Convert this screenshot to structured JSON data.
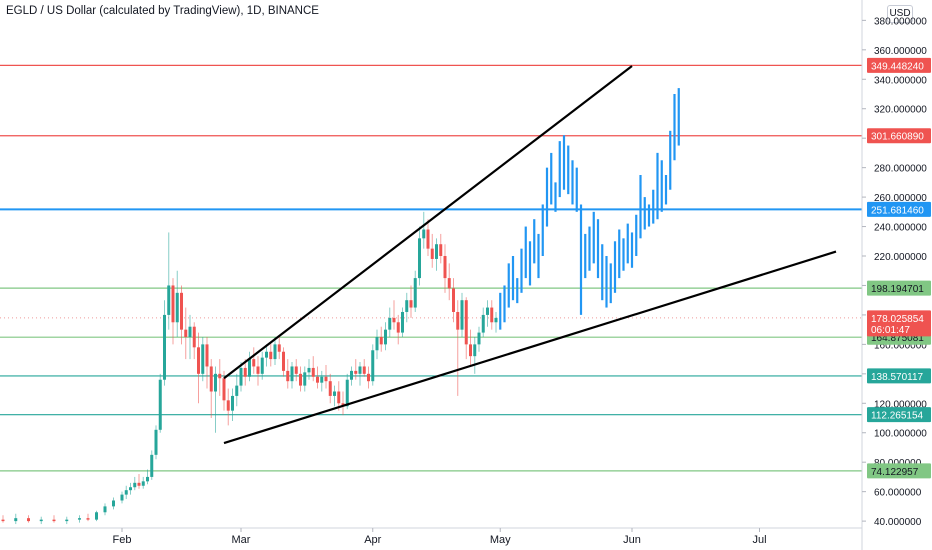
{
  "header": {
    "title": "EGLD / US Dollar (calculated by TradingView), 1D, BINANCE",
    "currency_button": "USD"
  },
  "colors": {
    "up": "#26a69a",
    "down": "#ef5350",
    "projection": "#2196f3",
    "trendline": "#000000"
  },
  "chart_data": {
    "type": "candlestick",
    "title": "EGLD / US Dollar (calculated by TradingView), 1D, BINANCE",
    "ylim": [
      36,
      385
    ],
    "y_ticks": [
      40,
      60,
      80,
      100,
      120,
      140,
      160,
      180,
      200,
      220,
      240,
      260,
      280,
      300,
      320,
      340,
      360,
      380
    ],
    "y_tick_labels": [
      "40.000000",
      "60.000000",
      "80.000000",
      "100.000000",
      "120.000000",
      "140.000000",
      "160.000000",
      "180.000000",
      "200.000000",
      "220.000000",
      "240.000000",
      "260.000000",
      "280.000000",
      "300.000000",
      "320.000000",
      "340.000000",
      "360.000000",
      "380.000000"
    ],
    "x_ticks": [
      {
        "date": "2021-02-01",
        "label": "Feb"
      },
      {
        "date": "2021-03-01",
        "label": "Mar"
      },
      {
        "date": "2021-04-01",
        "label": "Apr"
      },
      {
        "date": "2021-05-01",
        "label": "May"
      },
      {
        "date": "2021-06-01",
        "label": "Jun"
      },
      {
        "date": "2021-07-01",
        "label": "Jul"
      }
    ],
    "price_levels": [
      {
        "price": 349.44824,
        "label": "349.448240",
        "color": "#ef5350",
        "kind": "resistance"
      },
      {
        "price": 301.66089,
        "label": "301.660890",
        "color": "#ef5350",
        "kind": "resistance"
      },
      {
        "price": 251.68146,
        "label": "251.681460",
        "color": "#2196f3",
        "kind": "level"
      },
      {
        "price": 198.194701,
        "label": "198.194701",
        "color": "#81c784",
        "kind": "support"
      },
      {
        "price": 164.875081,
        "label": "164.875081",
        "color": "#81c784",
        "kind": "support"
      },
      {
        "price": 138.570117,
        "label": "138.570117",
        "color": "#26a69a",
        "kind": "support"
      },
      {
        "price": 112.265154,
        "label": "112.265154",
        "color": "#26a69a",
        "kind": "support"
      },
      {
        "price": 74.122957,
        "label": "74.122957",
        "color": "#81c784",
        "kind": "support"
      }
    ],
    "current_price": {
      "price": 178.025854,
      "label": "178.025854",
      "countdown": "06:01:47"
    },
    "trendlines": [
      {
        "from": {
          "date": "2021-02-25",
          "price": 93
        },
        "to": {
          "date": "2021-07-19",
          "price": 223
        }
      },
      {
        "from": {
          "date": "2021-02-25",
          "price": 137
        },
        "to": {
          "date": "2021-06-01",
          "price": 349
        }
      }
    ],
    "candles": [
      {
        "date": "2021-01-01",
        "o": 40,
        "h": 42,
        "l": 38,
        "c": 41
      },
      {
        "date": "2021-01-04",
        "o": 41,
        "h": 44,
        "l": 39,
        "c": 40
      },
      {
        "date": "2021-01-07",
        "o": 40,
        "h": 45,
        "l": 38,
        "c": 42
      },
      {
        "date": "2021-01-10",
        "o": 42,
        "h": 44,
        "l": 39,
        "c": 40
      },
      {
        "date": "2021-01-13",
        "o": 40,
        "h": 43,
        "l": 38,
        "c": 41
      },
      {
        "date": "2021-01-16",
        "o": 41,
        "h": 44,
        "l": 39,
        "c": 40
      },
      {
        "date": "2021-01-19",
        "o": 40,
        "h": 43,
        "l": 38,
        "c": 41
      },
      {
        "date": "2021-01-22",
        "o": 41,
        "h": 44,
        "l": 39,
        "c": 42
      },
      {
        "date": "2021-01-24",
        "o": 42,
        "h": 45,
        "l": 40,
        "c": 41
      },
      {
        "date": "2021-01-26",
        "o": 41,
        "h": 47,
        "l": 40,
        "c": 46
      },
      {
        "date": "2021-01-28",
        "o": 46,
        "h": 52,
        "l": 44,
        "c": 50
      },
      {
        "date": "2021-01-30",
        "o": 50,
        "h": 56,
        "l": 48,
        "c": 54
      },
      {
        "date": "2021-02-01",
        "o": 54,
        "h": 60,
        "l": 52,
        "c": 58
      },
      {
        "date": "2021-02-02",
        "o": 58,
        "h": 64,
        "l": 55,
        "c": 61
      },
      {
        "date": "2021-02-03",
        "o": 61,
        "h": 66,
        "l": 58,
        "c": 63
      },
      {
        "date": "2021-02-04",
        "o": 63,
        "h": 70,
        "l": 61,
        "c": 66
      },
      {
        "date": "2021-02-05",
        "o": 66,
        "h": 72,
        "l": 62,
        "c": 64
      },
      {
        "date": "2021-02-06",
        "o": 64,
        "h": 70,
        "l": 62,
        "c": 67
      },
      {
        "date": "2021-02-07",
        "o": 67,
        "h": 75,
        "l": 65,
        "c": 70
      },
      {
        "date": "2021-02-08",
        "o": 70,
        "h": 88,
        "l": 68,
        "c": 85
      },
      {
        "date": "2021-02-09",
        "o": 85,
        "h": 105,
        "l": 82,
        "c": 102
      },
      {
        "date": "2021-02-10",
        "o": 102,
        "h": 140,
        "l": 100,
        "c": 136
      },
      {
        "date": "2021-02-11",
        "o": 136,
        "h": 190,
        "l": 132,
        "c": 180
      },
      {
        "date": "2021-02-12",
        "o": 180,
        "h": 236,
        "l": 170,
        "c": 200
      },
      {
        "date": "2021-02-13",
        "o": 200,
        "h": 205,
        "l": 160,
        "c": 175
      },
      {
        "date": "2021-02-14",
        "o": 175,
        "h": 210,
        "l": 165,
        "c": 195
      },
      {
        "date": "2021-02-15",
        "o": 195,
        "h": 200,
        "l": 160,
        "c": 170
      },
      {
        "date": "2021-02-16",
        "o": 170,
        "h": 185,
        "l": 150,
        "c": 165
      },
      {
        "date": "2021-02-17",
        "o": 165,
        "h": 180,
        "l": 150,
        "c": 172
      },
      {
        "date": "2021-02-18",
        "o": 172,
        "h": 175,
        "l": 150,
        "c": 158
      },
      {
        "date": "2021-02-19",
        "o": 158,
        "h": 168,
        "l": 120,
        "c": 140
      },
      {
        "date": "2021-02-20",
        "o": 140,
        "h": 165,
        "l": 135,
        "c": 160
      },
      {
        "date": "2021-02-21",
        "o": 160,
        "h": 165,
        "l": 130,
        "c": 145
      },
      {
        "date": "2021-02-22",
        "o": 145,
        "h": 150,
        "l": 110,
        "c": 128
      },
      {
        "date": "2021-02-23",
        "o": 128,
        "h": 145,
        "l": 100,
        "c": 140
      },
      {
        "date": "2021-02-24",
        "o": 140,
        "h": 150,
        "l": 125,
        "c": 137
      },
      {
        "date": "2021-02-25",
        "o": 137,
        "h": 142,
        "l": 115,
        "c": 122
      },
      {
        "date": "2021-02-26",
        "o": 122,
        "h": 130,
        "l": 105,
        "c": 115
      },
      {
        "date": "2021-02-27",
        "o": 115,
        "h": 130,
        "l": 108,
        "c": 125
      },
      {
        "date": "2021-02-28",
        "o": 125,
        "h": 140,
        "l": 118,
        "c": 132
      },
      {
        "date": "2021-03-01",
        "o": 132,
        "h": 148,
        "l": 128,
        "c": 144
      },
      {
        "date": "2021-03-02",
        "o": 144,
        "h": 150,
        "l": 132,
        "c": 138
      },
      {
        "date": "2021-03-03",
        "o": 138,
        "h": 155,
        "l": 135,
        "c": 150
      },
      {
        "date": "2021-03-04",
        "o": 150,
        "h": 158,
        "l": 140,
        "c": 145
      },
      {
        "date": "2021-03-05",
        "o": 145,
        "h": 152,
        "l": 132,
        "c": 140
      },
      {
        "date": "2021-03-06",
        "o": 140,
        "h": 155,
        "l": 136,
        "c": 151
      },
      {
        "date": "2021-03-07",
        "o": 151,
        "h": 160,
        "l": 145,
        "c": 155
      },
      {
        "date": "2021-03-08",
        "o": 155,
        "h": 162,
        "l": 145,
        "c": 150
      },
      {
        "date": "2021-03-09",
        "o": 150,
        "h": 165,
        "l": 146,
        "c": 160
      },
      {
        "date": "2021-03-10",
        "o": 160,
        "h": 166,
        "l": 150,
        "c": 155
      },
      {
        "date": "2021-03-11",
        "o": 155,
        "h": 158,
        "l": 138,
        "c": 142
      },
      {
        "date": "2021-03-12",
        "o": 142,
        "h": 150,
        "l": 130,
        "c": 135
      },
      {
        "date": "2021-03-13",
        "o": 135,
        "h": 148,
        "l": 130,
        "c": 145
      },
      {
        "date": "2021-03-14",
        "o": 145,
        "h": 150,
        "l": 135,
        "c": 140
      },
      {
        "date": "2021-03-15",
        "o": 140,
        "h": 145,
        "l": 128,
        "c": 132
      },
      {
        "date": "2021-03-16",
        "o": 132,
        "h": 145,
        "l": 128,
        "c": 141
      },
      {
        "date": "2021-03-17",
        "o": 141,
        "h": 150,
        "l": 136,
        "c": 144
      },
      {
        "date": "2021-03-18",
        "o": 144,
        "h": 152,
        "l": 135,
        "c": 138
      },
      {
        "date": "2021-03-19",
        "o": 138,
        "h": 145,
        "l": 130,
        "c": 134
      },
      {
        "date": "2021-03-20",
        "o": 134,
        "h": 142,
        "l": 128,
        "c": 138
      },
      {
        "date": "2021-03-21",
        "o": 138,
        "h": 146,
        "l": 130,
        "c": 135
      },
      {
        "date": "2021-03-22",
        "o": 135,
        "h": 140,
        "l": 120,
        "c": 125
      },
      {
        "date": "2021-03-23",
        "o": 125,
        "h": 132,
        "l": 118,
        "c": 128
      },
      {
        "date": "2021-03-24",
        "o": 128,
        "h": 135,
        "l": 115,
        "c": 120
      },
      {
        "date": "2021-03-25",
        "o": 120,
        "h": 128,
        "l": 112,
        "c": 118
      },
      {
        "date": "2021-03-26",
        "o": 118,
        "h": 140,
        "l": 116,
        "c": 136
      },
      {
        "date": "2021-03-27",
        "o": 136,
        "h": 145,
        "l": 132,
        "c": 142
      },
      {
        "date": "2021-03-28",
        "o": 142,
        "h": 150,
        "l": 136,
        "c": 140
      },
      {
        "date": "2021-03-29",
        "o": 140,
        "h": 148,
        "l": 132,
        "c": 145
      },
      {
        "date": "2021-03-30",
        "o": 145,
        "h": 150,
        "l": 138,
        "c": 140
      },
      {
        "date": "2021-03-31",
        "o": 140,
        "h": 145,
        "l": 130,
        "c": 135
      },
      {
        "date": "2021-04-01",
        "o": 135,
        "h": 160,
        "l": 132,
        "c": 156
      },
      {
        "date": "2021-04-02",
        "o": 156,
        "h": 170,
        "l": 150,
        "c": 165
      },
      {
        "date": "2021-04-03",
        "o": 165,
        "h": 172,
        "l": 155,
        "c": 160
      },
      {
        "date": "2021-04-04",
        "o": 160,
        "h": 175,
        "l": 156,
        "c": 170
      },
      {
        "date": "2021-04-05",
        "o": 170,
        "h": 185,
        "l": 165,
        "c": 178
      },
      {
        "date": "2021-04-06",
        "o": 178,
        "h": 190,
        "l": 170,
        "c": 175
      },
      {
        "date": "2021-04-07",
        "o": 175,
        "h": 180,
        "l": 160,
        "c": 168
      },
      {
        "date": "2021-04-08",
        "o": 168,
        "h": 185,
        "l": 165,
        "c": 182
      },
      {
        "date": "2021-04-09",
        "o": 182,
        "h": 195,
        "l": 175,
        "c": 190
      },
      {
        "date": "2021-04-10",
        "o": 190,
        "h": 200,
        "l": 178,
        "c": 185
      },
      {
        "date": "2021-04-11",
        "o": 185,
        "h": 210,
        "l": 182,
        "c": 205
      },
      {
        "date": "2021-04-12",
        "o": 205,
        "h": 240,
        "l": 200,
        "c": 232
      },
      {
        "date": "2021-04-13",
        "o": 232,
        "h": 250,
        "l": 225,
        "c": 238
      },
      {
        "date": "2021-04-14",
        "o": 238,
        "h": 245,
        "l": 220,
        "c": 225
      },
      {
        "date": "2021-04-15",
        "o": 225,
        "h": 235,
        "l": 212,
        "c": 218
      },
      {
        "date": "2021-04-16",
        "o": 218,
        "h": 232,
        "l": 210,
        "c": 228
      },
      {
        "date": "2021-04-17",
        "o": 228,
        "h": 235,
        "l": 215,
        "c": 220
      },
      {
        "date": "2021-04-18",
        "o": 220,
        "h": 228,
        "l": 195,
        "c": 205
      },
      {
        "date": "2021-04-19",
        "o": 205,
        "h": 215,
        "l": 190,
        "c": 198
      },
      {
        "date": "2021-04-20",
        "o": 198,
        "h": 205,
        "l": 175,
        "c": 182
      },
      {
        "date": "2021-04-21",
        "o": 182,
        "h": 190,
        "l": 125,
        "c": 170
      },
      {
        "date": "2021-04-22",
        "o": 170,
        "h": 195,
        "l": 165,
        "c": 190
      },
      {
        "date": "2021-04-23",
        "o": 190,
        "h": 192,
        "l": 150,
        "c": 160
      },
      {
        "date": "2021-04-24",
        "o": 160,
        "h": 170,
        "l": 145,
        "c": 152
      },
      {
        "date": "2021-04-25",
        "o": 152,
        "h": 165,
        "l": 140,
        "c": 160
      },
      {
        "date": "2021-04-26",
        "o": 160,
        "h": 172,
        "l": 155,
        "c": 168
      },
      {
        "date": "2021-04-27",
        "o": 168,
        "h": 185,
        "l": 165,
        "c": 180
      },
      {
        "date": "2021-04-28",
        "o": 180,
        "h": 190,
        "l": 172,
        "c": 185
      },
      {
        "date": "2021-04-29",
        "o": 185,
        "h": 190,
        "l": 170,
        "c": 175
      },
      {
        "date": "2021-04-30",
        "o": 175,
        "h": 182,
        "l": 168,
        "c": 178
      }
    ],
    "projection_bars": [
      {
        "date": "2021-05-01",
        "h": 195,
        "l": 170
      },
      {
        "date": "2021-05-02",
        "h": 200,
        "l": 175
      },
      {
        "date": "2021-05-03",
        "h": 215,
        "l": 185
      },
      {
        "date": "2021-05-04",
        "h": 220,
        "l": 190
      },
      {
        "date": "2021-05-05",
        "h": 205,
        "l": 188
      },
      {
        "date": "2021-05-06",
        "h": 225,
        "l": 195
      },
      {
        "date": "2021-05-07",
        "h": 240,
        "l": 205
      },
      {
        "date": "2021-05-08",
        "h": 230,
        "l": 200
      },
      {
        "date": "2021-05-09",
        "h": 245,
        "l": 215
      },
      {
        "date": "2021-05-10",
        "h": 235,
        "l": 205
      },
      {
        "date": "2021-05-11",
        "h": 255,
        "l": 220
      },
      {
        "date": "2021-05-12",
        "h": 280,
        "l": 240
      },
      {
        "date": "2021-05-13",
        "h": 290,
        "l": 255
      },
      {
        "date": "2021-05-14",
        "h": 270,
        "l": 250
      },
      {
        "date": "2021-05-15",
        "h": 298,
        "l": 260
      },
      {
        "date": "2021-05-16",
        "h": 302,
        "l": 265
      },
      {
        "date": "2021-05-17",
        "h": 295,
        "l": 262
      },
      {
        "date": "2021-05-18",
        "h": 285,
        "l": 255
      },
      {
        "date": "2021-05-19",
        "h": 280,
        "l": 250
      },
      {
        "date": "2021-05-20",
        "h": 255,
        "l": 180
      },
      {
        "date": "2021-05-21",
        "h": 235,
        "l": 205
      },
      {
        "date": "2021-05-22",
        "h": 240,
        "l": 210
      },
      {
        "date": "2021-05-23",
        "h": 250,
        "l": 215
      },
      {
        "date": "2021-05-24",
        "h": 245,
        "l": 205
      },
      {
        "date": "2021-05-25",
        "h": 228,
        "l": 190
      },
      {
        "date": "2021-05-26",
        "h": 220,
        "l": 185
      },
      {
        "date": "2021-05-27",
        "h": 215,
        "l": 188
      },
      {
        "date": "2021-05-28",
        "h": 230,
        "l": 195
      },
      {
        "date": "2021-05-29",
        "h": 238,
        "l": 205
      },
      {
        "date": "2021-05-30",
        "h": 232,
        "l": 210
      },
      {
        "date": "2021-05-31",
        "h": 242,
        "l": 215
      },
      {
        "date": "2021-06-01",
        "h": 236,
        "l": 212
      },
      {
        "date": "2021-06-02",
        "h": 248,
        "l": 220
      },
      {
        "date": "2021-06-03",
        "h": 275,
        "l": 232
      },
      {
        "date": "2021-06-04",
        "h": 260,
        "l": 238
      },
      {
        "date": "2021-06-05",
        "h": 255,
        "l": 240
      },
      {
        "date": "2021-06-06",
        "h": 265,
        "l": 242
      },
      {
        "date": "2021-06-07",
        "h": 290,
        "l": 245
      },
      {
        "date": "2021-06-08",
        "h": 285,
        "l": 250
      },
      {
        "date": "2021-06-09",
        "h": 275,
        "l": 255
      },
      {
        "date": "2021-06-10",
        "h": 305,
        "l": 265
      },
      {
        "date": "2021-06-11",
        "h": 330,
        "l": 285
      },
      {
        "date": "2021-06-12",
        "h": 334,
        "l": 295
      }
    ]
  }
}
